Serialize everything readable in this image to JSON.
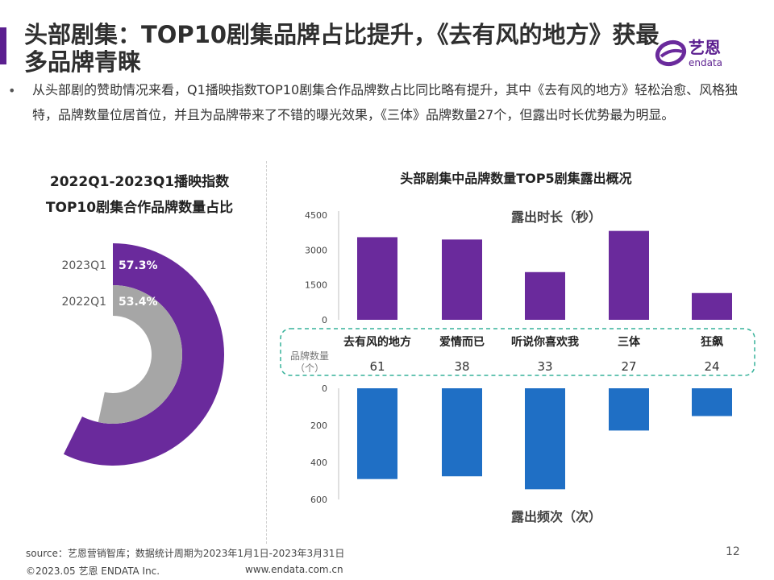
{
  "header": {
    "title": "头部剧集：TOP10剧集品牌占比提升，《去有风的地方》获最多品牌青睐",
    "logo_text": "艺恩",
    "logo_sub": "endata",
    "accent_color": "#5b1f8f"
  },
  "bullet": "从头部剧的赞助情况来看，Q1播映指数TOP10剧集合作品牌数占比同比略有提升，其中《去有风的地方》轻松治愈、风格独特，品牌数量位居首位，并且为品牌带来了不错的曝光效果，《三体》品牌数量27个，但露出时长优势最为明显。",
  "donut_chart": {
    "title_line1": "2022Q1-2023Q1播映指数",
    "title_line2": "TOP10剧集合作品牌数量占比"
  },
  "bar_chart": {
    "title": "头部剧集中品牌数量TOP5剧集露出概况",
    "count_label_line1": "品牌数量",
    "count_label_line2": "（个）"
  },
  "chart_data": [
    {
      "type": "pie",
      "variant": "radial-donut",
      "categories": [
        "2023Q1",
        "2022Q1"
      ],
      "values": [
        57.3,
        53.4
      ],
      "value_labels": [
        "57.3%",
        "53.4%"
      ],
      "colors": [
        "#6a2a9c",
        "#a6a6a6"
      ]
    },
    {
      "type": "bar",
      "categories": [
        "去有风的地方",
        "爱情而已",
        "听说你喜欢我",
        "三体",
        "狂飙"
      ],
      "series": [
        {
          "name": "露出时长（秒）",
          "values": [
            3550,
            3450,
            2050,
            3820,
            1150
          ],
          "color": "#6a2a9c"
        },
        {
          "name": "露出频次（次）",
          "values": [
            490,
            475,
            545,
            228,
            150
          ],
          "color": "#1f6fc5"
        }
      ],
      "brand_counts": [
        "61",
        "38",
        "33",
        "27",
        "24"
      ],
      "top_ticks": [
        "4500",
        "3000",
        "1500",
        "0"
      ],
      "bottom_ticks": [
        "0",
        "200",
        "400",
        "600"
      ],
      "top_ylim": [
        0,
        4500
      ],
      "bottom_ylim": [
        0,
        600
      ]
    }
  ],
  "footer": {
    "source": "source：艺恩营销智库；数据统计周期为2023年1月1日-2023年3月31日",
    "copyright": "©2023.05 艺恩 ENDATA Inc.",
    "website": "www.endata.com.cn",
    "page": "12"
  }
}
